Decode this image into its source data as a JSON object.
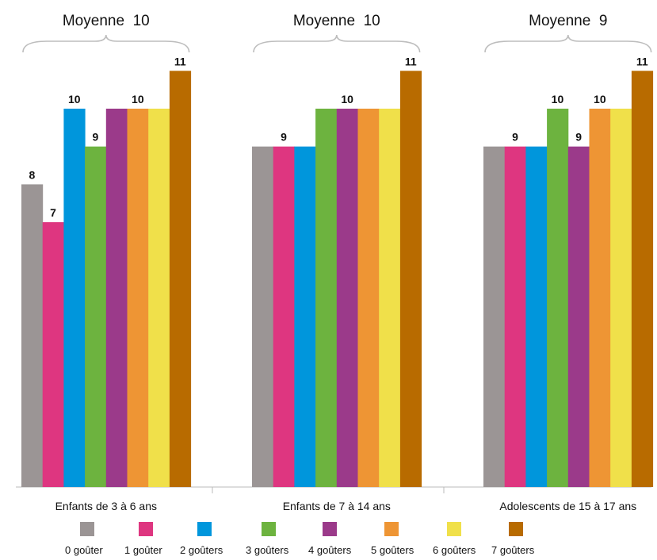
{
  "chart_data": {
    "type": "bar",
    "groups": [
      {
        "label": "Enfants de 3 à 6 ans",
        "header": "Moyenne  10",
        "values": [
          8,
          7,
          10,
          9,
          10,
          10,
          10,
          11
        ],
        "data_labels": [
          "8",
          "7",
          "10",
          "9",
          "",
          "10",
          "",
          "11"
        ]
      },
      {
        "label": "Enfants de 7 à 14 ans",
        "header": "Moyenne  10",
        "values": [
          9,
          9,
          9,
          10,
          10,
          10,
          10,
          11
        ],
        "data_labels": [
          "",
          "9",
          "",
          "",
          "10",
          "",
          "",
          "11"
        ]
      },
      {
        "label": "Adolescents de 15 à 17 ans",
        "header": "Moyenne  9",
        "values": [
          9,
          9,
          9,
          10,
          9,
          10,
          10,
          11
        ],
        "data_labels": [
          "",
          "9",
          "",
          "10",
          "9",
          "10",
          "",
          "11"
        ]
      }
    ],
    "series": [
      {
        "name": "0 goûter",
        "color": "#9b9595"
      },
      {
        "name": "1 goûter",
        "color": "#de3680"
      },
      {
        "name": "2 goûters",
        "color": "#0096dc"
      },
      {
        "name": "3 goûters",
        "color": "#6db33f"
      },
      {
        "name": "4 goûters",
        "color": "#9b3a8a"
      },
      {
        "name": "5 goûters",
        "color": "#ee9534"
      },
      {
        "name": "6 goûters",
        "color": "#f0e04a"
      },
      {
        "name": "7 goûters",
        "color": "#b86b00"
      }
    ],
    "ylim": [
      0,
      11
    ],
    "grid": false,
    "legend_position": "bottom"
  }
}
